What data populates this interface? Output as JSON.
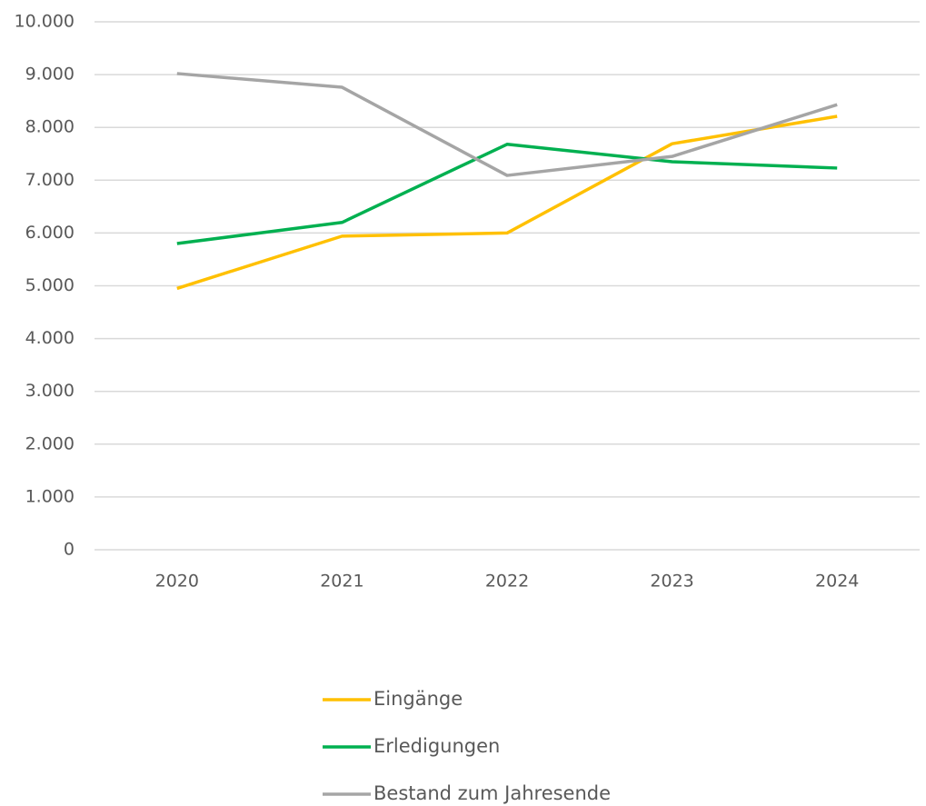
{
  "chart_data": {
    "type": "line",
    "categories": [
      "2020",
      "2021",
      "2022",
      "2023",
      "2024"
    ],
    "series": [
      {
        "name": "Eingänge",
        "color": "#FFC000",
        "values": [
          4950,
          5940,
          6000,
          7690,
          8210
        ]
      },
      {
        "name": "Erledigungen",
        "color": "#00B050",
        "values": [
          5800,
          6200,
          7680,
          7350,
          7230
        ]
      },
      {
        "name": "Bestand zum Jahresende",
        "color": "#A5A5A5",
        "values": [
          9020,
          8760,
          7090,
          7450,
          8430
        ]
      }
    ],
    "ylim": [
      0,
      10000
    ],
    "yticks": [
      0,
      {
        "value": 1000,
        "label": "1.000"
      },
      {
        "value": 2000,
        "label": "2.000"
      },
      {
        "value": 3000,
        "label": "3.000"
      },
      {
        "value": 4000,
        "label": "4.000"
      },
      {
        "value": 5000,
        "label": "5.000"
      },
      {
        "value": 6000,
        "label": "6.000"
      },
      {
        "value": 7000,
        "label": "7.000"
      },
      {
        "value": 8000,
        "label": "8.000"
      },
      {
        "value": 9000,
        "label": "9.000"
      },
      {
        "value": 10000,
        "label": "10.000"
      }
    ],
    "grid": true,
    "legend": "bottom"
  }
}
